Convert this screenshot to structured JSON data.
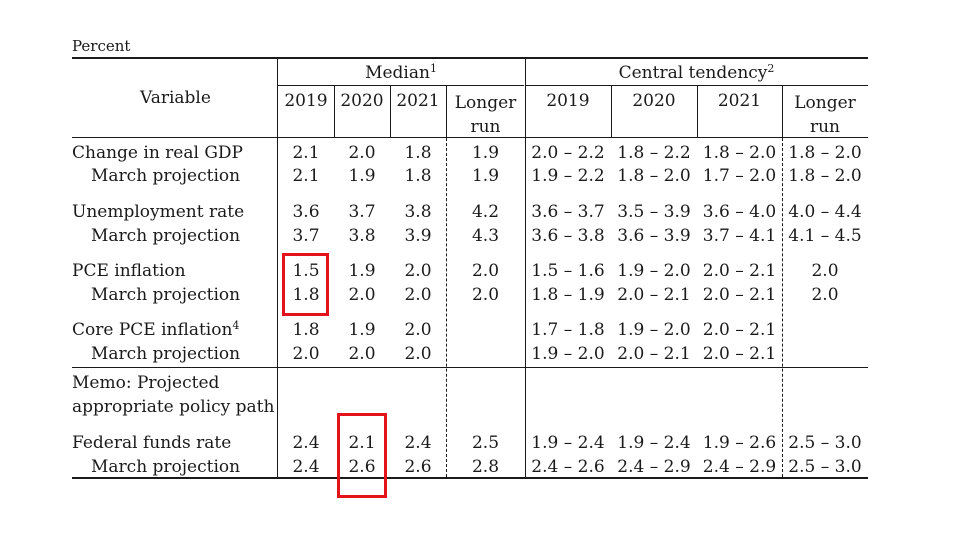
{
  "unit_label": "Percent",
  "headers": {
    "variable": "Variable",
    "median": "Median",
    "median_note": "1",
    "central": "Central tendency",
    "central_note": "2",
    "years": [
      "2019",
      "2020",
      "2021"
    ],
    "longer_run_1": "Longer",
    "longer_run_2": "run"
  },
  "rows": [
    {
      "label": "Change in real GDP",
      "median": [
        "2.1",
        "2.0",
        "1.8",
        "1.9"
      ],
      "central": [
        "2.0 – 2.2",
        "1.8 – 2.2",
        "1.8 – 2.0",
        "1.8 – 2.0"
      ]
    },
    {
      "label": "March projection",
      "median": [
        "2.1",
        "1.9",
        "1.8",
        "1.9"
      ],
      "central": [
        "1.9 – 2.2",
        "1.8 – 2.0",
        "1.7 – 2.0",
        "1.8 – 2.0"
      ]
    },
    {
      "label": "Unemployment rate",
      "median": [
        "3.6",
        "3.7",
        "3.8",
        "4.2"
      ],
      "central": [
        "3.6 – 3.7",
        "3.5 – 3.9",
        "3.6 – 4.0",
        "4.0 – 4.4"
      ]
    },
    {
      "label": "March projection",
      "median": [
        "3.7",
        "3.8",
        "3.9",
        "4.3"
      ],
      "central": [
        "3.6 – 3.8",
        "3.6 – 3.9",
        "3.7 – 4.1",
        "4.1 – 4.5"
      ]
    },
    {
      "label": "PCE inflation",
      "median": [
        "1.5",
        "1.9",
        "2.0",
        "2.0"
      ],
      "central": [
        "1.5 – 1.6",
        "1.9 – 2.0",
        "2.0 – 2.1",
        "2.0"
      ]
    },
    {
      "label": "March projection",
      "median": [
        "1.8",
        "2.0",
        "2.0",
        "2.0"
      ],
      "central": [
        "1.8 – 1.9",
        "2.0 – 2.1",
        "2.0 – 2.1",
        "2.0"
      ]
    },
    {
      "label": "Core PCE inflation",
      "note": "4",
      "median": [
        "1.8",
        "1.9",
        "2.0",
        ""
      ],
      "central": [
        "1.7 – 1.8",
        "1.9 – 2.0",
        "2.0 – 2.1",
        ""
      ]
    },
    {
      "label": "March projection",
      "median": [
        "2.0",
        "2.0",
        "2.0",
        ""
      ],
      "central": [
        "1.9 – 2.0",
        "2.0 – 2.1",
        "2.0 – 2.1",
        ""
      ]
    },
    {
      "label": "Federal funds rate",
      "median": [
        "2.4",
        "2.1",
        "2.4",
        "2.5"
      ],
      "central": [
        "1.9 – 2.4",
        "1.9 – 2.4",
        "1.9 – 2.6",
        "2.5 – 3.0"
      ]
    },
    {
      "label": "March projection",
      "median": [
        "2.4",
        "2.6",
        "2.6",
        "2.8"
      ],
      "central": [
        "2.4 – 2.6",
        "2.4 – 2.9",
        "2.4 – 2.9",
        "2.5 – 3.0"
      ]
    }
  ],
  "memo": {
    "line1": "Memo: Projected",
    "line2": "appropriate policy path"
  },
  "highlight_color": "#e3121b"
}
